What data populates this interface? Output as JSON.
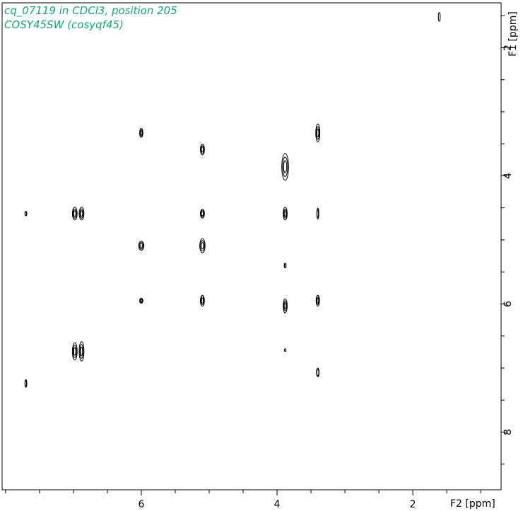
{
  "header": {
    "line1": "cq_07119 in CDCl3, position 205",
    "line2": "COSY45SW (cosyqf45)",
    "color": "#1aa37a"
  },
  "chart_data": {
    "type": "contour",
    "x_axis": {
      "label": "F2 [ppm]",
      "range": [
        8.05,
        0.7
      ],
      "reversed": true,
      "major_ticks": [
        6,
        4,
        2
      ],
      "minor_step": 0.5
    },
    "y_axis": {
      "label": "F1 [ppm]",
      "range": [
        1.3,
        8.9
      ],
      "reversed": true,
      "major_ticks": [
        2,
        4,
        6,
        8
      ],
      "minor_step": 0.5
    },
    "grid": false,
    "peaks": [
      {
        "x": 1.61,
        "y": 1.52,
        "w": 0.028,
        "h": 0.14
      },
      {
        "x": 6.0,
        "y": 3.33,
        "w": 0.05,
        "h": 0.14
      },
      {
        "x": 3.4,
        "y": 3.33,
        "w": 0.06,
        "h": 0.28
      },
      {
        "x": 5.1,
        "y": 3.59,
        "w": 0.06,
        "h": 0.17
      },
      {
        "x": 3.88,
        "y": 3.86,
        "w": 0.1,
        "h": 0.42
      },
      {
        "x": 7.7,
        "y": 4.59,
        "w": 0.03,
        "h": 0.07
      },
      {
        "x": 6.98,
        "y": 4.59,
        "w": 0.07,
        "h": 0.2
      },
      {
        "x": 6.88,
        "y": 4.59,
        "w": 0.07,
        "h": 0.2
      },
      {
        "x": 5.1,
        "y": 4.59,
        "w": 0.06,
        "h": 0.14
      },
      {
        "x": 3.88,
        "y": 4.59,
        "w": 0.06,
        "h": 0.2
      },
      {
        "x": 3.4,
        "y": 4.59,
        "w": 0.03,
        "h": 0.17
      },
      {
        "x": 6.0,
        "y": 5.09,
        "w": 0.08,
        "h": 0.14
      },
      {
        "x": 5.1,
        "y": 5.09,
        "w": 0.08,
        "h": 0.22
      },
      {
        "x": 3.88,
        "y": 5.4,
        "w": 0.03,
        "h": 0.07
      },
      {
        "x": 6.0,
        "y": 5.95,
        "w": 0.05,
        "h": 0.08
      },
      {
        "x": 5.1,
        "y": 5.95,
        "w": 0.06,
        "h": 0.17
      },
      {
        "x": 3.88,
        "y": 6.03,
        "w": 0.06,
        "h": 0.22
      },
      {
        "x": 3.4,
        "y": 5.95,
        "w": 0.05,
        "h": 0.17
      },
      {
        "x": 6.98,
        "y": 6.74,
        "w": 0.07,
        "h": 0.27
      },
      {
        "x": 6.88,
        "y": 6.74,
        "w": 0.07,
        "h": 0.3
      },
      {
        "x": 3.88,
        "y": 6.72,
        "w": 0.02,
        "h": 0.04
      },
      {
        "x": 3.4,
        "y": 7.07,
        "w": 0.04,
        "h": 0.14
      },
      {
        "x": 7.7,
        "y": 7.24,
        "w": 0.03,
        "h": 0.12
      }
    ]
  }
}
